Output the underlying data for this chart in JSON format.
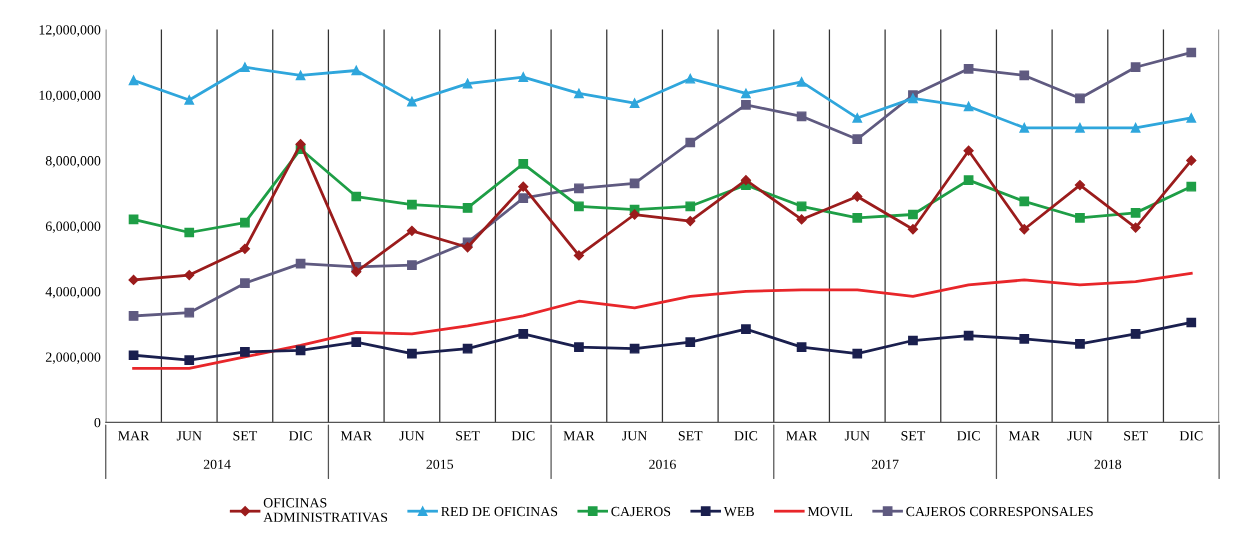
{
  "chart_data": {
    "type": "line",
    "categories": [
      "MAR",
      "JUN",
      "SET",
      "DIC",
      "MAR",
      "JUN",
      "SET",
      "DIC",
      "MAR",
      "JUN",
      "SET",
      "DIC",
      "MAR",
      "JUN",
      "SET",
      "DIC",
      "MAR",
      "JUN",
      "SET",
      "DIC"
    ],
    "annotations": [
      "2014",
      "2015",
      "2016",
      "2017",
      "2018"
    ],
    "ylim": [
      0,
      12000000
    ],
    "yticks": [
      0,
      {
        "value": 2000000,
        "label": "2,000,000"
      },
      {
        "value": 4000000,
        "label": "4,000,000"
      },
      {
        "value": 6000000,
        "label": "6,000,000"
      },
      {
        "value": 8000000,
        "label": "8,000,000"
      },
      {
        "value": 10000000,
        "label": "10,000,000"
      },
      {
        "value": 12000000,
        "label": "12,000,000"
      }
    ],
    "grid": "x",
    "legend": "bottom",
    "series": [
      {
        "name": "OFICINAS\nADMINISTRATIVAS",
        "color": "#9b1c1c",
        "marker": "diamond",
        "values": [
          4350000,
          4500000,
          5300000,
          8500000,
          4600000,
          5850000,
          5350000,
          7200000,
          5100000,
          6350000,
          6150000,
          7400000,
          6200000,
          6900000,
          5900000,
          8300000,
          5900000,
          7250000,
          5950000,
          8000000
        ]
      },
      {
        "name": "RED DE OFICINAS",
        "color": "#2fa6dc",
        "marker": "triangle",
        "values": [
          10450000,
          9850000,
          10850000,
          10600000,
          10750000,
          9800000,
          10350000,
          10550000,
          10050000,
          9750000,
          10500000,
          10050000,
          10400000,
          9300000,
          9900000,
          9650000,
          9000000,
          9000000,
          9000000,
          9300000
        ]
      },
      {
        "name": "CAJEROS",
        "color": "#1e9e46",
        "marker": "square",
        "values": [
          6200000,
          5800000,
          6100000,
          8350000,
          6900000,
          6650000,
          6550000,
          7900000,
          6600000,
          6500000,
          6600000,
          7250000,
          6600000,
          6250000,
          6350000,
          7400000,
          6750000,
          6250000,
          6400000,
          7200000
        ]
      },
      {
        "name": "WEB",
        "color": "#1a1f4e",
        "marker": "square",
        "values": [
          2050000,
          1900000,
          2150000,
          2200000,
          2450000,
          2100000,
          2250000,
          2700000,
          2300000,
          2250000,
          2450000,
          2850000,
          2300000,
          2100000,
          2500000,
          2650000,
          2550000,
          2400000,
          2700000,
          3050000
        ]
      },
      {
        "name": "MOVIL",
        "color": "#e8262a",
        "marker": "none",
        "values": [
          1650000,
          1650000,
          2000000,
          2350000,
          2750000,
          2700000,
          2950000,
          3250000,
          3700000,
          3500000,
          3850000,
          4000000,
          4050000,
          4050000,
          3850000,
          4200000,
          4350000,
          4200000,
          4300000,
          4550000
        ]
      },
      {
        "name": "CAJEROS CORRESPONSALES",
        "color": "#5f5a80",
        "marker": "square",
        "values": [
          3250000,
          3350000,
          4250000,
          4850000,
          4750000,
          4800000,
          5500000,
          6850000,
          7150000,
          7300000,
          8550000,
          9700000,
          9350000,
          8650000,
          10000000,
          10800000,
          10600000,
          9900000,
          10850000,
          11300000
        ]
      }
    ]
  }
}
